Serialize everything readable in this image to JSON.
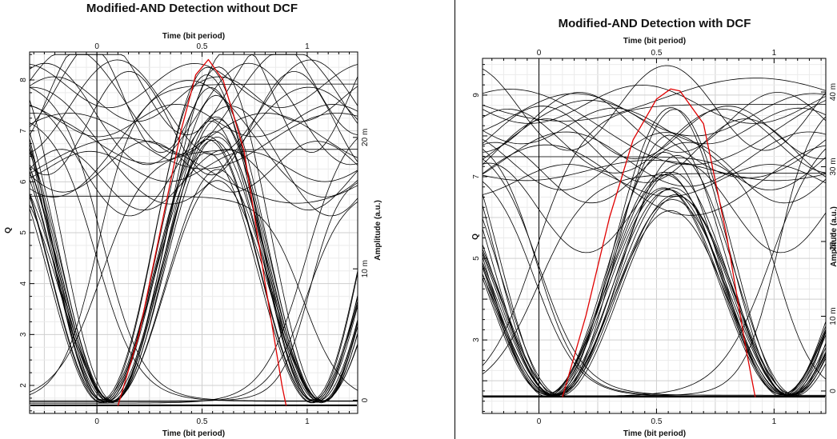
{
  "chart_data": [
    {
      "type": "line",
      "title": "Modified-AND Detection without DCF",
      "xlabel_top": "Time (bit period)",
      "xlabel_bottom": "Time (bit period)",
      "ylabel_left": "Q",
      "ylabel_right": "Amplitude (a.u.)",
      "xlim": [
        -0.32,
        1.24
      ],
      "left_ylim": [
        1.45,
        8.55
      ],
      "right_ylim": [
        -1.0,
        26.5
      ],
      "x_ticks": [
        0,
        0.5,
        1
      ],
      "left_ticks": [
        2,
        3,
        4,
        5,
        6,
        7,
        8
      ],
      "right_ticks": [
        0,
        10,
        20
      ],
      "right_tick_labels": [
        "0",
        "10 m",
        "20 m"
      ],
      "grid": true,
      "eye": {
        "baseline": 1.6,
        "upper_band": [
          5.3,
          8.4
        ],
        "crossing": 4.1,
        "bottom": 1.65,
        "peak_time": 0.55
      },
      "q_curve": {
        "color": "#e00000",
        "points": [
          [
            0.1,
            1.6
          ],
          [
            0.2,
            3.0
          ],
          [
            0.3,
            5.0
          ],
          [
            0.4,
            7.0
          ],
          [
            0.47,
            8.1
          ],
          [
            0.53,
            8.4
          ],
          [
            0.6,
            8.0
          ],
          [
            0.7,
            6.6
          ],
          [
            0.8,
            4.0
          ],
          [
            0.88,
            2.0
          ],
          [
            0.9,
            1.6
          ]
        ]
      }
    },
    {
      "type": "line",
      "title": "Modified-AND Detection with DCF",
      "xlabel_top": "Time (bit period)",
      "xlabel_bottom": "Time (bit period)",
      "ylabel_left": "Q",
      "ylabel_right": "Amplitude (a.u.)",
      "xlim": [
        -0.24,
        1.22
      ],
      "left_ylim": [
        1.2,
        9.9
      ],
      "right_ylim": [
        -3.0,
        44.5
      ],
      "x_ticks": [
        0,
        0.5,
        1
      ],
      "left_ticks": [
        3,
        5,
        7,
        9
      ],
      "right_ticks": [
        0,
        10,
        20,
        30,
        40
      ],
      "right_tick_labels": [
        "0",
        "10 m",
        "20 m",
        "30 m",
        "40 m"
      ],
      "grid": true,
      "eye": {
        "baseline": 1.6,
        "upper_band": [
          5.7,
          9.1
        ],
        "crossing": 4.4,
        "bottom": 1.6,
        "peak_time": 0.56
      },
      "q_curve": {
        "color": "#e00000",
        "points": [
          [
            0.1,
            1.6
          ],
          [
            0.2,
            3.6
          ],
          [
            0.3,
            6.0
          ],
          [
            0.4,
            7.9
          ],
          [
            0.5,
            8.9
          ],
          [
            0.56,
            9.15
          ],
          [
            0.6,
            9.1
          ],
          [
            0.7,
            8.3
          ],
          [
            0.8,
            5.5
          ],
          [
            0.88,
            2.8
          ],
          [
            0.92,
            1.6
          ]
        ]
      }
    }
  ]
}
